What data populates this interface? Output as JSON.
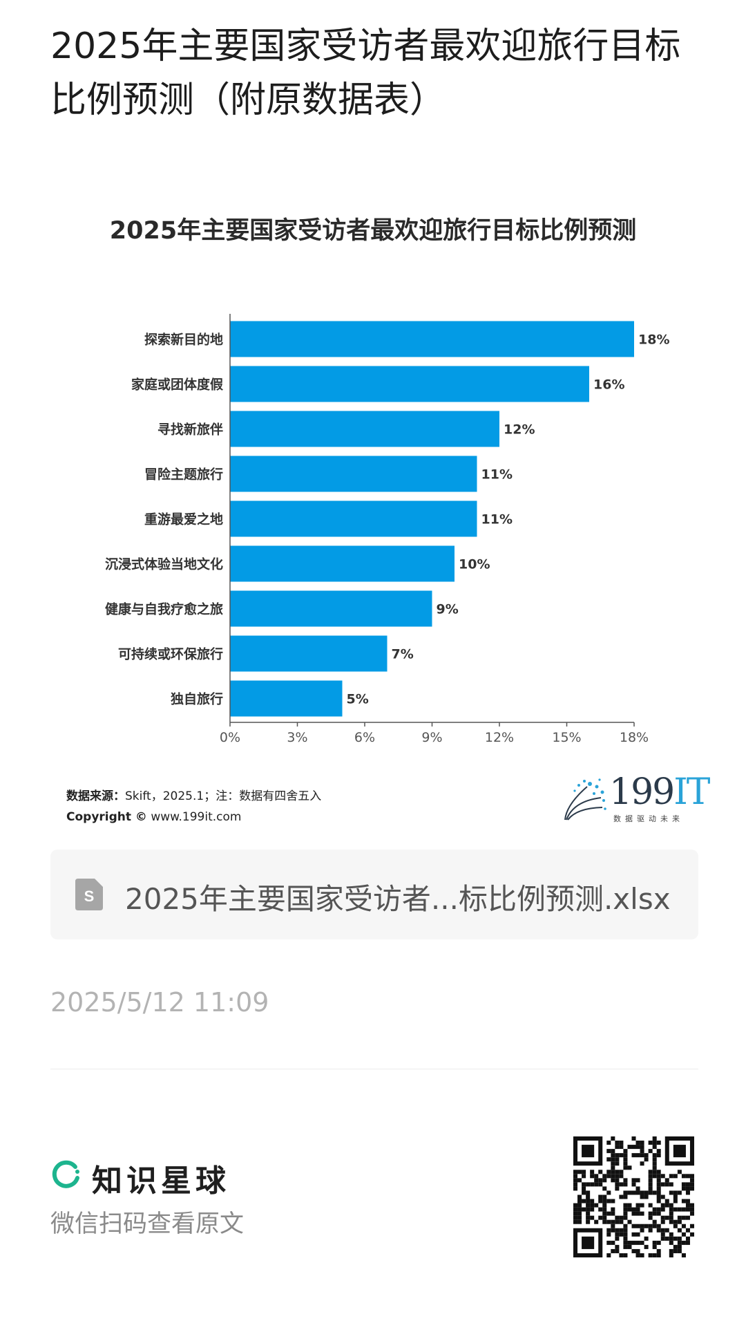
{
  "page": {
    "title": "2025年主要国家受访者最欢迎旅行目标比例预测（附原数据表）"
  },
  "chart_data": {
    "type": "bar",
    "orientation": "horizontal",
    "title": "2025年主要国家受访者最欢迎旅行目标比例预测",
    "categories": [
      "探索新目的地",
      "家庭或团体度假",
      "寻找新旅伴",
      "冒险主题旅行",
      "重游最爱之地",
      "沉浸式体验当地文化",
      "健康与自我疗愈之旅",
      "可持续或环保旅行",
      "独自旅行"
    ],
    "values": [
      18,
      16,
      12,
      11,
      11,
      10,
      9,
      7,
      5
    ],
    "value_labels": [
      "18%",
      "16%",
      "12%",
      "11%",
      "11%",
      "10%",
      "9%",
      "7%",
      "5%"
    ],
    "xlim": [
      0,
      18
    ],
    "xticks": [
      "0%",
      "3%",
      "6%",
      "9%",
      "12%",
      "15%",
      "18%"
    ],
    "bar_color": "#039BE5",
    "grid": false
  },
  "source": {
    "label": "数据来源：",
    "text": "Skift，2025.1；注：数据有四舍五入",
    "copyright_label": "Copyright ©",
    "copyright_text": "www.199it.com"
  },
  "logo": {
    "number": "199",
    "it": "IT",
    "tagline": "数据驱动未来"
  },
  "attachment": {
    "file_name": "2025年主要国家受访者...标比例预测.xlsx",
    "icon": "spreadsheet-file-icon"
  },
  "timestamp": "2025/5/12 11:09",
  "footer": {
    "brand_name": "知识星球",
    "brand_color": "#1db48e",
    "scan_text": "微信扫码查看原文",
    "qr_icon": "qr-code-icon"
  }
}
